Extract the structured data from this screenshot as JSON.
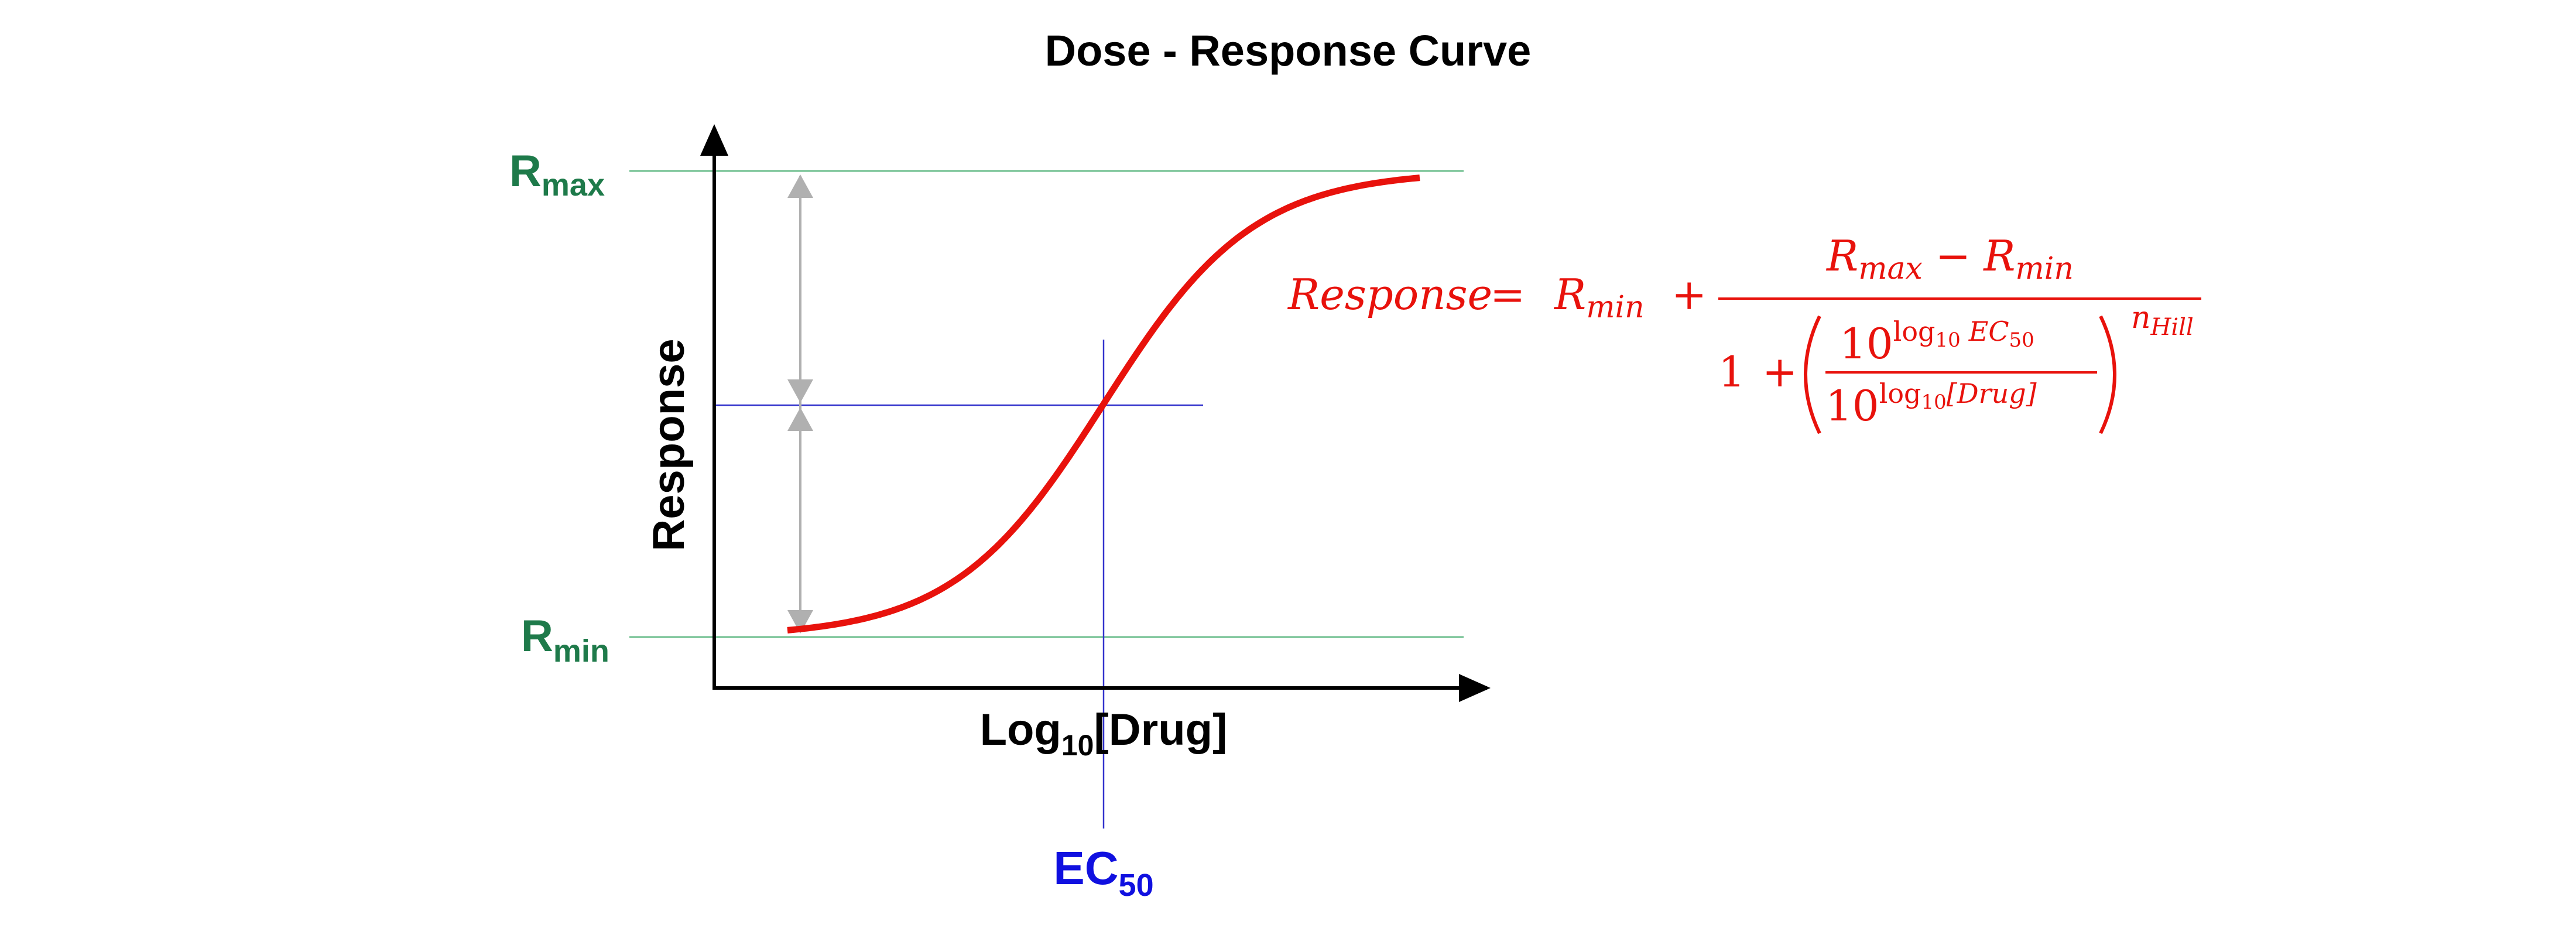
{
  "title": "Dose - Response Curve",
  "axes": {
    "y_label": "Response",
    "x_label_main": "Log",
    "x_label_sub": "10",
    "x_label_rest": "[Drug]"
  },
  "levels": {
    "rmax_main": "R",
    "rmax_sub": "max",
    "rmin_main": "R",
    "rmin_sub": "min"
  },
  "ec50": {
    "main": "EC",
    "sub": "50"
  },
  "equation": {
    "lhs": "Response",
    "eq": "=",
    "rmin_r": "R",
    "rmin_sub": "min",
    "plus": "+",
    "num_rmax_r": "R",
    "num_rmax_sub": "max",
    "num_minus": "−",
    "num_rmin_r": "R",
    "num_rmin_sub": "min",
    "den_one": "1",
    "den_plus": "+",
    "inner_num_base": "10",
    "inner_num_exp_log": "log",
    "inner_num_exp_sub": "10",
    "inner_num_exp_var": "EC",
    "inner_num_exp_var_sub": "50",
    "inner_den_base": "10",
    "inner_den_exp_log": "log",
    "inner_den_exp_sub": "10",
    "inner_den_exp_var": "[Drug]",
    "outer_exp_n": "n",
    "outer_exp_sub": "Hill"
  },
  "colors": {
    "curve": "#e8120c",
    "level_lines": "#6fbf8f",
    "level_labels": "#1e7a4a",
    "guide_lines": "#3333cc",
    "ec50_label": "#1010e0",
    "arrows": "#b0b0b0",
    "axes": "#000000",
    "equation": "#e8120c"
  }
}
